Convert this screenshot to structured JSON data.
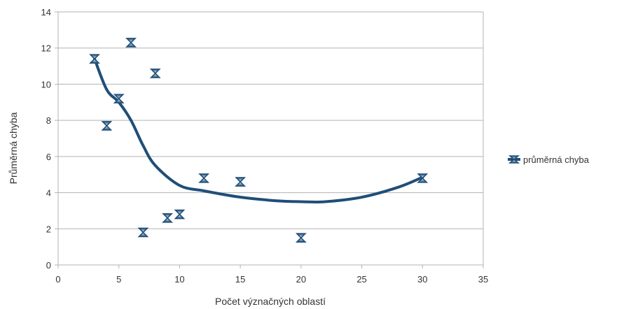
{
  "chart_data": {
    "type": "scatter",
    "title": "",
    "xlabel": "Počet význačných oblastí",
    "ylabel": "Průměrná chyba",
    "xlim": [
      0,
      35
    ],
    "ylim": [
      0,
      14
    ],
    "xticks": [
      0,
      5,
      10,
      15,
      20,
      25,
      30,
      35
    ],
    "yticks": [
      0,
      2,
      4,
      6,
      8,
      10,
      12,
      14
    ],
    "grid": "horizontal",
    "legend_position": "right",
    "series": [
      {
        "name": "průměrná chyba",
        "color": "#1f4e79",
        "marker": "hourglass",
        "trendline": "smooth",
        "points": [
          {
            "x": 3,
            "y": 11.4
          },
          {
            "x": 4,
            "y": 7.7
          },
          {
            "x": 5,
            "y": 9.2
          },
          {
            "x": 6,
            "y": 12.3
          },
          {
            "x": 7,
            "y": 1.8
          },
          {
            "x": 8,
            "y": 10.6
          },
          {
            "x": 9,
            "y": 2.6
          },
          {
            "x": 10,
            "y": 2.8
          },
          {
            "x": 12,
            "y": 4.8
          },
          {
            "x": 15,
            "y": 4.6
          },
          {
            "x": 20,
            "y": 1.5
          },
          {
            "x": 30,
            "y": 4.8
          }
        ],
        "trend_points": [
          {
            "x": 3,
            "y": 11.4
          },
          {
            "x": 4,
            "y": 9.7
          },
          {
            "x": 5,
            "y": 9.0
          },
          {
            "x": 6,
            "y": 8.0
          },
          {
            "x": 7,
            "y": 6.6
          },
          {
            "x": 8,
            "y": 5.5
          },
          {
            "x": 10,
            "y": 4.4
          },
          {
            "x": 12,
            "y": 4.1
          },
          {
            "x": 15,
            "y": 3.75
          },
          {
            "x": 18,
            "y": 3.55
          },
          {
            "x": 20,
            "y": 3.5
          },
          {
            "x": 22,
            "y": 3.5
          },
          {
            "x": 25,
            "y": 3.75
          },
          {
            "x": 28,
            "y": 4.3
          },
          {
            "x": 30,
            "y": 4.85
          }
        ]
      }
    ]
  }
}
